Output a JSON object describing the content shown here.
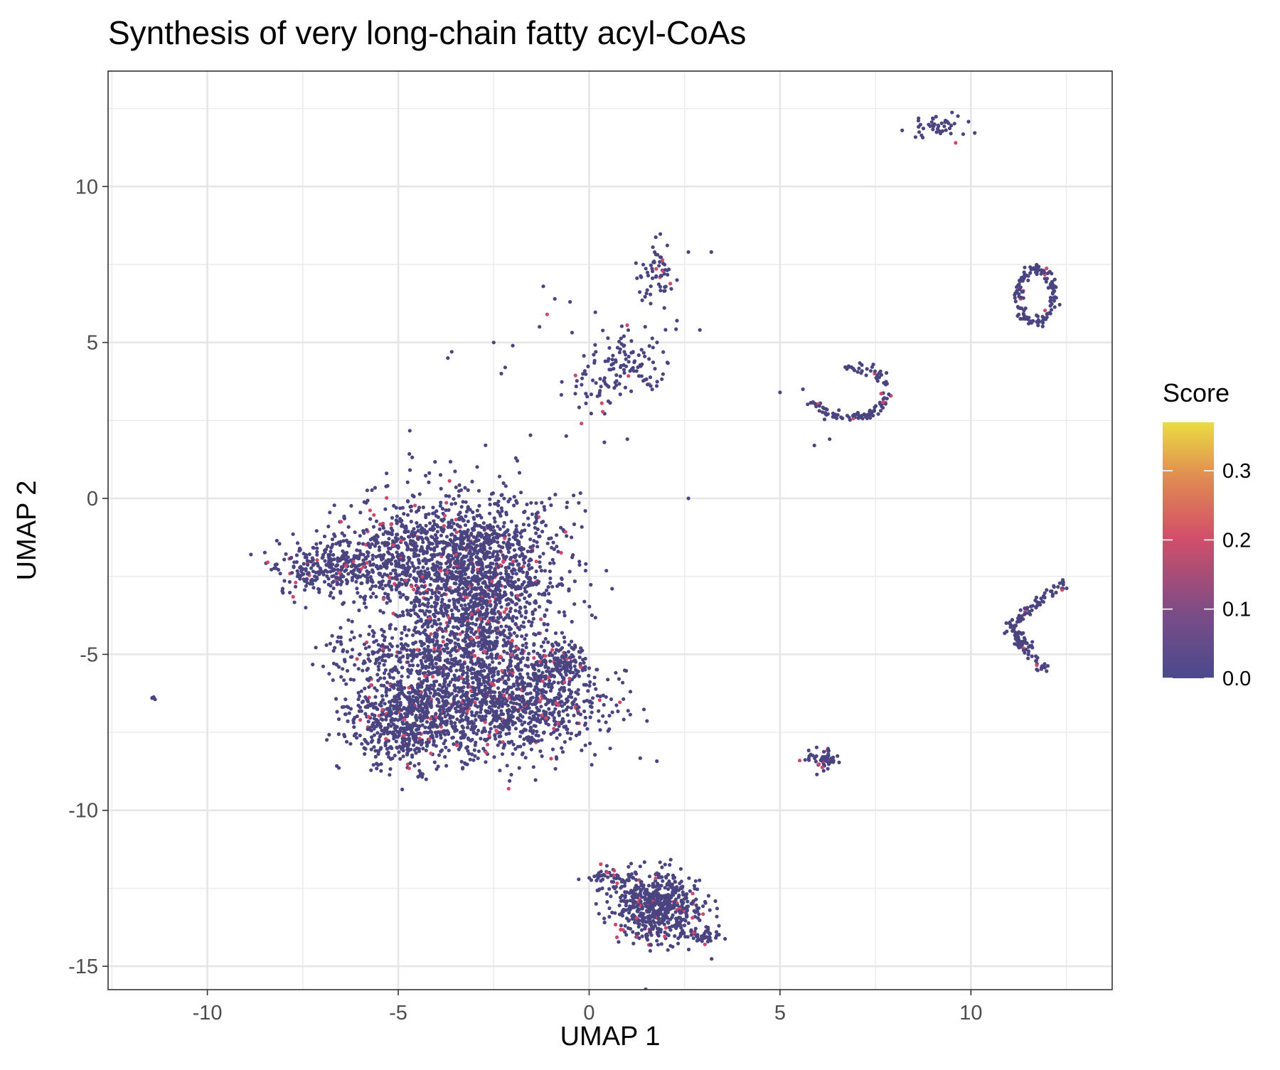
{
  "chart_data": {
    "type": "scatter",
    "title": "Synthesis of very long-chain fatty acyl-CoAs",
    "xlabel": "UMAP 1",
    "ylabel": "UMAP 2",
    "xlim": [
      -12.6,
      13.7
    ],
    "ylim": [
      -15.75,
      13.7
    ],
    "x_ticks": [
      -10,
      -5,
      0,
      5,
      10
    ],
    "y_ticks": [
      -15,
      -10,
      -5,
      0,
      5,
      10
    ],
    "x_tick_labels": [
      "-10",
      "-5",
      "0",
      "5",
      "10"
    ],
    "y_tick_labels": [
      "-15",
      "-10",
      "-5",
      "0",
      "5",
      "10"
    ],
    "grid": true,
    "colorbar": {
      "title": "Score",
      "min": 0.0,
      "max": 0.37,
      "ticks": [
        0.0,
        0.1,
        0.2,
        0.3
      ],
      "tick_labels": [
        "0.0",
        "0.1",
        "0.2",
        "0.3"
      ],
      "placement": "right",
      "colors": [
        "#4a4a8c",
        "#7a4c86",
        "#d24e6a",
        "#e08a52",
        "#eadc42"
      ]
    },
    "point_color_low": "#4a4480",
    "point_color_high": "#d1466a",
    "clusters": [
      {
        "cx": -3.0,
        "cy": -2.4,
        "sx": 1.1,
        "sy": 1.3,
        "n": 1500
      },
      {
        "cx": -5.0,
        "cy": -1.8,
        "sx": 0.8,
        "sy": 0.9,
        "n": 380
      },
      {
        "cx": -6.8,
        "cy": -2.2,
        "sx": 0.7,
        "sy": 0.45,
        "n": 300
      },
      {
        "cx": -4.8,
        "cy": -5.0,
        "sx": 1.2,
        "sy": 0.35,
        "n": 220
      },
      {
        "cx": -4.8,
        "cy": -7.0,
        "sx": 0.75,
        "sy": 0.8,
        "n": 700
      },
      {
        "cx": -2.2,
        "cy": -6.6,
        "sx": 1.25,
        "sy": 0.8,
        "n": 1100
      },
      {
        "cx": -3.0,
        "cy": -4.5,
        "sx": 0.9,
        "sy": 0.8,
        "n": 350
      },
      {
        "cx": -0.8,
        "cy": -5.3,
        "sx": 0.35,
        "sy": 0.3,
        "n": 120
      },
      {
        "cx": 1.8,
        "cy": -13.1,
        "sx": 0.55,
        "sy": 0.55,
        "n": 600
      },
      {
        "cx": 0.6,
        "cy": -12.2,
        "sx": 0.3,
        "sy": 0.2,
        "n": 50
      },
      {
        "cx": 3.0,
        "cy": -14.0,
        "sx": 0.3,
        "sy": 0.12,
        "n": 40
      },
      {
        "cx": 6.1,
        "cy": -8.4,
        "sx": 0.25,
        "sy": 0.15,
        "n": 55
      },
      {
        "cx": 0.9,
        "cy": 4.4,
        "sx": 0.55,
        "sy": 0.5,
        "n": 110
      },
      {
        "cx": 0.2,
        "cy": 3.5,
        "sx": 0.35,
        "sy": 0.45,
        "n": 30
      },
      {
        "cx": 1.8,
        "cy": 7.3,
        "sx": 0.25,
        "sy": 0.45,
        "n": 60
      },
      {
        "cx": 9.2,
        "cy": 11.9,
        "sx": 0.35,
        "sy": 0.2,
        "n": 45
      },
      {
        "cx": -11.4,
        "cy": -6.35,
        "sx": 0.05,
        "sy": 0.05,
        "n": 6
      }
    ],
    "arcs": [
      {
        "cx": 11.7,
        "cy": 6.5,
        "rx": 0.45,
        "ry": 0.85,
        "n": 140
      },
      {
        "cx": 6.8,
        "cy": 3.4,
        "rx": 1.0,
        "ry": 0.8,
        "start": -2.8,
        "end": 1.6,
        "n": 120
      }
    ],
    "lines": [
      {
        "x1": 12.4,
        "y1": -2.7,
        "x2": 10.9,
        "y2": -4.2,
        "n": 70
      },
      {
        "x1": 11.1,
        "y1": -4.2,
        "x2": 11.9,
        "y2": -5.5,
        "n": 50
      },
      {
        "x1": 11.2,
        "y1": -4.6,
        "x2": 11.4,
        "y2": -4.7,
        "n": 30
      }
    ],
    "scatter_points": [
      [
        -1.2,
        6.8
      ],
      [
        -0.9,
        6.4
      ],
      [
        -1.1,
        5.9
      ],
      [
        -1.3,
        5.5
      ],
      [
        -3.6,
        4.7
      ],
      [
        -3.7,
        4.5
      ],
      [
        -2.5,
        5.0
      ],
      [
        -2.0,
        4.9
      ],
      [
        -2.2,
        4.2
      ],
      [
        -2.3,
        4.0
      ],
      [
        -0.5,
        6.3
      ],
      [
        2.3,
        5.7
      ],
      [
        2.9,
        5.4
      ],
      [
        3.2,
        7.9
      ],
      [
        2.6,
        7.9
      ],
      [
        2.3,
        7.0
      ],
      [
        -0.6,
        2.0
      ],
      [
        -0.2,
        2.4
      ],
      [
        0.4,
        1.8
      ],
      [
        1.0,
        1.9
      ],
      [
        5.0,
        3.4
      ],
      [
        2.6,
        0.0
      ],
      [
        5.6,
        3.5
      ],
      [
        5.9,
        1.7
      ],
      [
        6.3,
        1.9
      ],
      [
        8.2,
        11.8
      ],
      [
        9.6,
        11.4
      ],
      [
        -7.8,
        -1.9
      ],
      [
        -6.0,
        -1.2
      ],
      [
        -0.1,
        -0.4
      ],
      [
        -2.3,
        0.1
      ],
      [
        -0.1,
        -5.4
      ],
      [
        -0.8,
        -4.7
      ],
      [
        3.4,
        -13.7
      ]
    ]
  }
}
